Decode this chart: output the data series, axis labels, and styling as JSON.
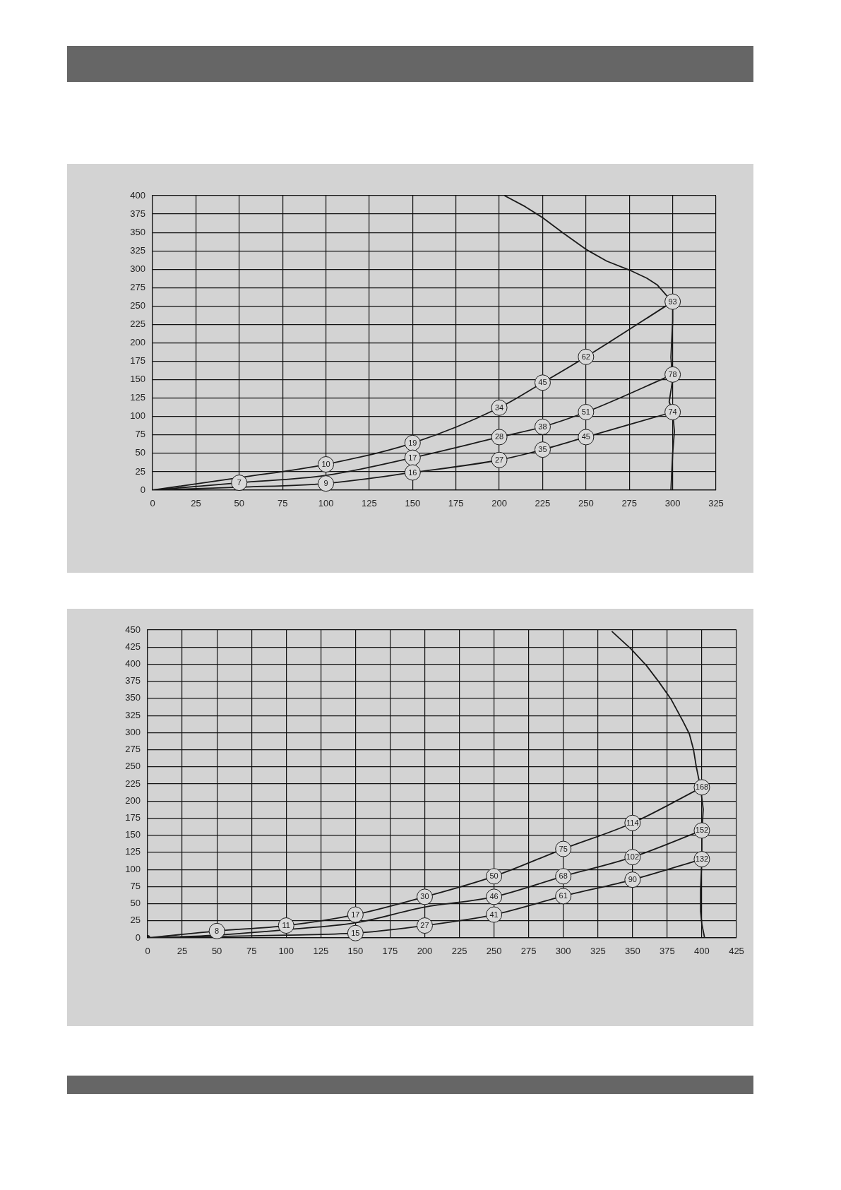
{
  "chart_data": [
    {
      "type": "line",
      "xlim": [
        0,
        325
      ],
      "ylim": [
        0,
        400
      ],
      "xticks": [
        0,
        25,
        50,
        75,
        100,
        125,
        150,
        175,
        200,
        225,
        250,
        275,
        300,
        325
      ],
      "yticks": [
        0,
        25,
        50,
        75,
        100,
        125,
        150,
        175,
        200,
        225,
        250,
        275,
        300,
        325,
        350,
        375,
        400
      ],
      "grid": true,
      "series": [
        {
          "color": "#1a1a1a",
          "x": [
            0,
            50,
            100,
            150,
            200,
            225,
            250,
            300
          ],
          "values": [
            0,
            17,
            35,
            64,
            112,
            146,
            181,
            256
          ]
        },
        {
          "color": "#1a1a1a",
          "x": [
            0,
            50,
            100,
            150,
            200,
            225,
            250,
            300
          ],
          "values": [
            0,
            10,
            20,
            44,
            72,
            86,
            106,
            157
          ]
        },
        {
          "color": "#1a1a1a",
          "x": [
            0,
            50,
            100,
            150,
            200,
            225,
            250,
            300
          ],
          "values": [
            0,
            4,
            9,
            24,
            41,
            55,
            72,
            106
          ]
        },
        {
          "color": "#1a1a1a",
          "x": [
            203,
            215,
            225,
            237,
            250,
            262,
            275,
            285,
            291,
            297,
            300,
            300,
            299,
            300,
            298,
            300,
            301,
            300,
            299
          ],
          "values": [
            400,
            385,
            370,
            349,
            327,
            311,
            299,
            288,
            279,
            263,
            256,
            230,
            180,
            150,
            120,
            106,
            80,
            50,
            0
          ]
        }
      ],
      "annotations": [
        {
          "text": "10",
          "x": 100,
          "y": 35
        },
        {
          "text": "19",
          "x": 150,
          "y": 64
        },
        {
          "text": "34",
          "x": 200,
          "y": 112
        },
        {
          "text": "45",
          "x": 225,
          "y": 146
        },
        {
          "text": "62",
          "x": 250,
          "y": 181
        },
        {
          "text": "93",
          "x": 300,
          "y": 256
        },
        {
          "text": "7",
          "x": 50,
          "y": 10
        },
        {
          "text": "17",
          "x": 150,
          "y": 44
        },
        {
          "text": "28",
          "x": 200,
          "y": 72
        },
        {
          "text": "38",
          "x": 225,
          "y": 86
        },
        {
          "text": "51",
          "x": 250,
          "y": 106
        },
        {
          "text": "78",
          "x": 300,
          "y": 157
        },
        {
          "text": "9",
          "x": 100,
          "y": 9
        },
        {
          "text": "16",
          "x": 150,
          "y": 24
        },
        {
          "text": "27",
          "x": 200,
          "y": 41
        },
        {
          "text": "35",
          "x": 225,
          "y": 55
        },
        {
          "text": "45",
          "x": 250,
          "y": 72
        },
        {
          "text": "74",
          "x": 300,
          "y": 106
        }
      ]
    },
    {
      "type": "line",
      "xlim": [
        0,
        425
      ],
      "ylim": [
        0,
        450
      ],
      "xticks": [
        0,
        25,
        50,
        75,
        100,
        125,
        150,
        175,
        200,
        225,
        250,
        275,
        300,
        325,
        350,
        375,
        400,
        425
      ],
      "yticks": [
        0,
        25,
        50,
        75,
        100,
        125,
        150,
        175,
        200,
        225,
        250,
        275,
        300,
        325,
        350,
        375,
        400,
        425,
        450
      ],
      "grid": true,
      "series": [
        {
          "color": "#1a1a1a",
          "marker": "circle",
          "x": [
            0,
            50,
            100,
            150,
            200,
            250,
            300,
            350,
            400
          ],
          "values": [
            0,
            10,
            18,
            34,
            60,
            90,
            130,
            168,
            220
          ]
        },
        {
          "color": "#1a1a1a",
          "x": [
            0,
            50,
            100,
            150,
            200,
            250,
            300,
            350,
            400
          ],
          "values": [
            0,
            4,
            12,
            22,
            45,
            60,
            90,
            118,
            157
          ]
        },
        {
          "color": "#1a1a1a",
          "x": [
            0,
            50,
            100,
            150,
            200,
            250,
            300,
            350,
            400
          ],
          "values": [
            0,
            2,
            4,
            7,
            18,
            34,
            61,
            85,
            115
          ]
        },
        {
          "color": "#1a1a1a",
          "x": [
            335,
            349,
            360,
            369,
            378,
            386,
            391,
            394,
            396,
            399,
            401,
            400,
            400,
            399,
            399,
            400,
            402
          ],
          "values": [
            448,
            422,
            398,
            374,
            348,
            318,
            298,
            275,
            250,
            220,
            188,
            153,
            115,
            67,
            40,
            20,
            0
          ]
        }
      ],
      "annotations": [
        {
          "text": "8",
          "x": 50,
          "y": 10
        },
        {
          "text": "11",
          "x": 100,
          "y": 18
        },
        {
          "text": "17",
          "x": 150,
          "y": 34
        },
        {
          "text": "30",
          "x": 200,
          "y": 60
        },
        {
          "text": "50",
          "x": 250,
          "y": 90
        },
        {
          "text": "75",
          "x": 300,
          "y": 130
        },
        {
          "text": "114",
          "x": 350,
          "y": 168
        },
        {
          "text": "168",
          "x": 400,
          "y": 220
        },
        {
          "text": "46",
          "x": 250,
          "y": 60
        },
        {
          "text": "68",
          "x": 300,
          "y": 90
        },
        {
          "text": "102",
          "x": 350,
          "y": 118
        },
        {
          "text": "152",
          "x": 400,
          "y": 157
        },
        {
          "text": "15",
          "x": 150,
          "y": 7
        },
        {
          "text": "27",
          "x": 200,
          "y": 18
        },
        {
          "text": "41",
          "x": 250,
          "y": 34
        },
        {
          "text": "61",
          "x": 300,
          "y": 61
        },
        {
          "text": "90",
          "x": 350,
          "y": 85
        },
        {
          "text": "132",
          "x": 400,
          "y": 115
        }
      ]
    }
  ]
}
